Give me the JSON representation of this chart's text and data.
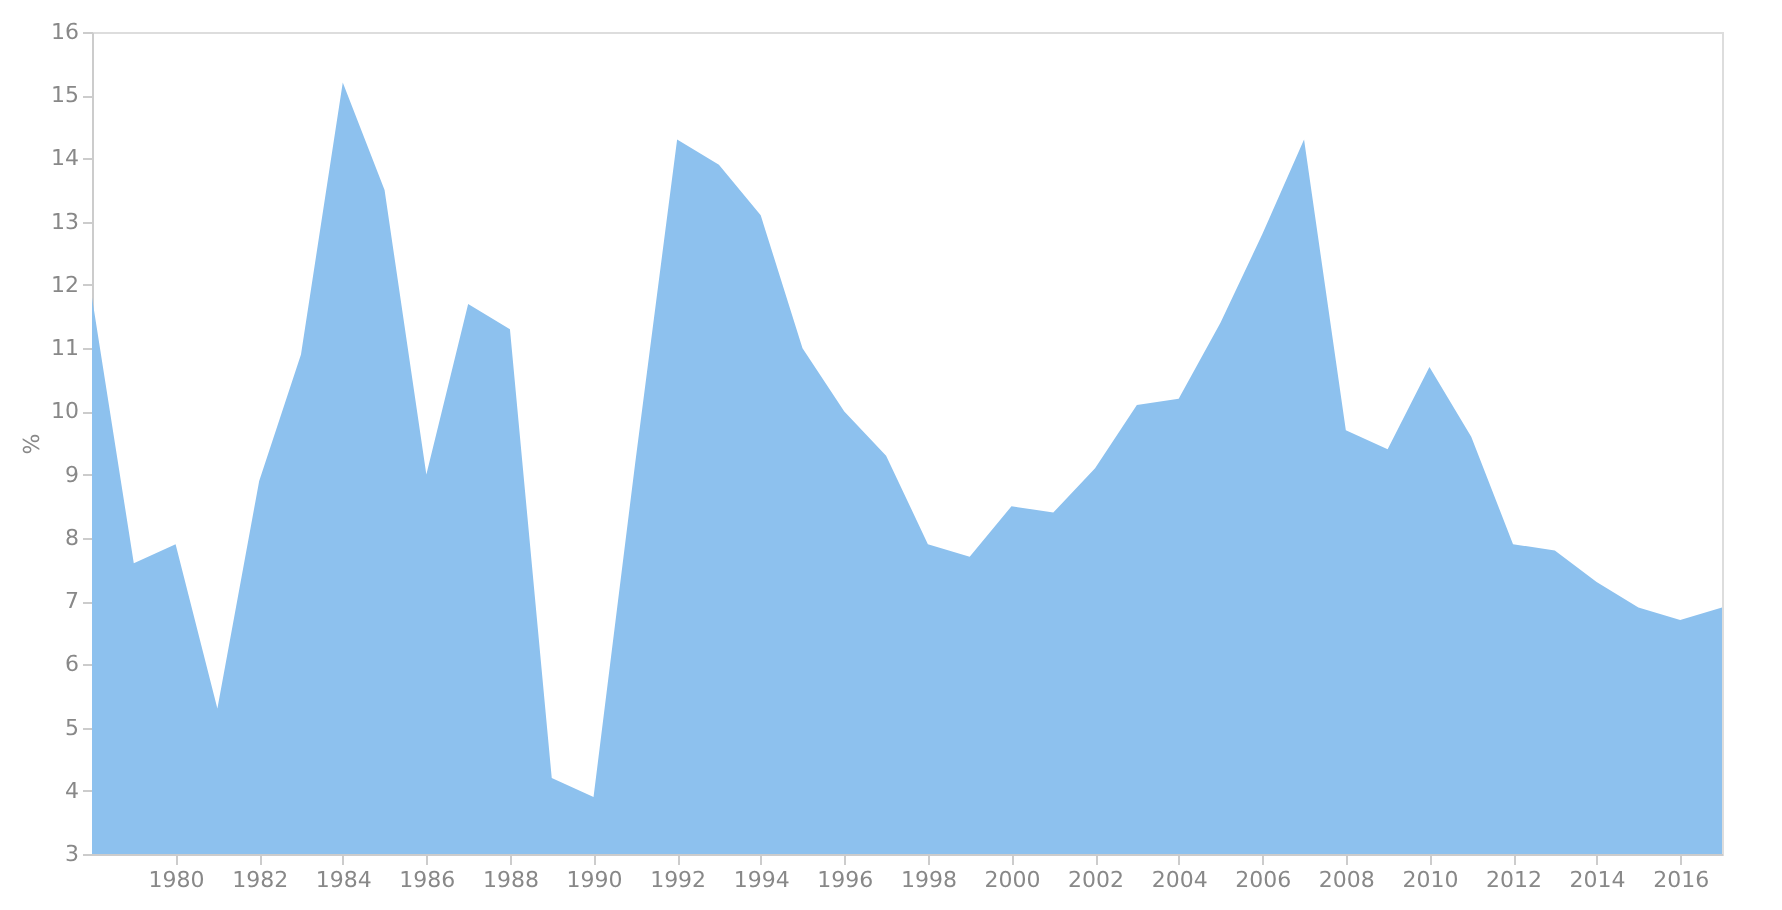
{
  "chart_data": {
    "type": "area",
    "ylabel": "%",
    "x": [
      1978,
      1979,
      1980,
      1981,
      1982,
      1983,
      1984,
      1985,
      1986,
      1987,
      1988,
      1989,
      1990,
      1991,
      1992,
      1993,
      1994,
      1995,
      1996,
      1997,
      1998,
      1999,
      2000,
      2001,
      2002,
      2003,
      2004,
      2005,
      2006,
      2007,
      2008,
      2009,
      2010,
      2011,
      2012,
      2013,
      2014,
      2015,
      2016,
      2017
    ],
    "series": [
      {
        "color": "#8dc1ee",
        "values": [
          11.8,
          7.6,
          7.9,
          5.3,
          8.9,
          10.9,
          15.2,
          13.5,
          9.0,
          11.7,
          11.3,
          4.2,
          3.9,
          9.2,
          14.3,
          13.9,
          13.1,
          11.0,
          10.0,
          9.3,
          7.9,
          7.7,
          8.5,
          8.4,
          9.1,
          10.1,
          10.2,
          11.4,
          12.8,
          14.3,
          9.7,
          9.4,
          10.7,
          9.6,
          7.9,
          7.8,
          7.3,
          6.9,
          6.7,
          6.9
        ]
      }
    ],
    "xlim": [
      1978,
      2017
    ],
    "xticks": [
      1980,
      1982,
      1984,
      1986,
      1988,
      1990,
      1992,
      1994,
      1996,
      1998,
      2000,
      2002,
      2004,
      2006,
      2008,
      2010,
      2012,
      2014,
      2016
    ],
    "ylim": [
      3,
      16
    ],
    "yticks": [
      3,
      4,
      5,
      6,
      7,
      8,
      9,
      10,
      11,
      12,
      13,
      14,
      15,
      16
    ],
    "grid": false
  }
}
